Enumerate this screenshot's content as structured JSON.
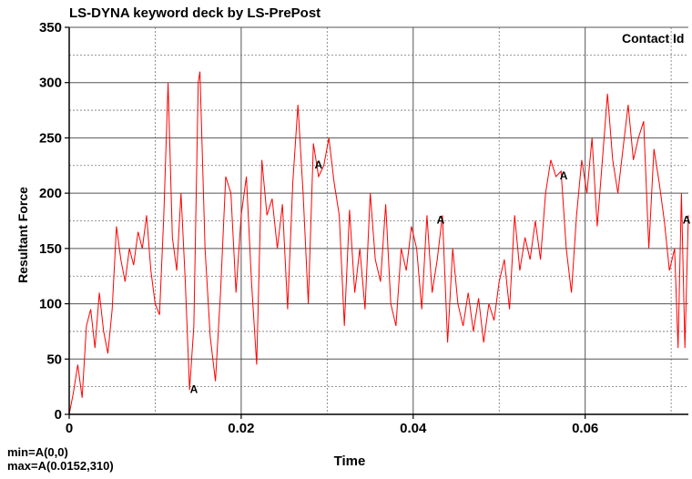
{
  "chart_data": {
    "type": "line",
    "title": "LS-DYNA keyword deck by LS-PrePost",
    "xlabel": "Time",
    "ylabel": "Resultant Force",
    "xlim": [
      0,
      0.072
    ],
    "ylim": [
      0,
      350
    ],
    "xticks": [
      0,
      0.02,
      0.04,
      0.06
    ],
    "xtick_labels": [
      "0",
      "0.02",
      "0.04",
      "0.06"
    ],
    "yticks": [
      0,
      50,
      100,
      150,
      200,
      250,
      300,
      350
    ],
    "ytick_labels": [
      "0",
      "50",
      "100",
      "150",
      "200",
      "250",
      "300",
      "350"
    ],
    "grid": true,
    "legend_position": "top-right",
    "series": [
      {
        "name": "Contact Id",
        "marker": "A",
        "color": "#ff0000",
        "x": [
          0,
          0.0005,
          0.001,
          0.0015,
          0.002,
          0.0025,
          0.003,
          0.0035,
          0.004,
          0.0045,
          0.005,
          0.0055,
          0.006,
          0.0065,
          0.007,
          0.0075,
          0.008,
          0.0085,
          0.009,
          0.0095,
          0.01,
          0.0105,
          0.011,
          0.0115,
          0.012,
          0.0125,
          0.013,
          0.0135,
          0.014,
          0.0145,
          0.015,
          0.0152,
          0.0158,
          0.0164,
          0.017,
          0.0176,
          0.0182,
          0.0188,
          0.0194,
          0.02,
          0.0206,
          0.0212,
          0.0218,
          0.0224,
          0.023,
          0.0236,
          0.0242,
          0.0248,
          0.0254,
          0.026,
          0.0266,
          0.0272,
          0.0278,
          0.0284,
          0.029,
          0.0296,
          0.0302,
          0.0308,
          0.0314,
          0.032,
          0.0326,
          0.0332,
          0.0338,
          0.0344,
          0.035,
          0.0356,
          0.0362,
          0.0368,
          0.0374,
          0.038,
          0.0386,
          0.0392,
          0.0398,
          0.0404,
          0.041,
          0.0416,
          0.0422,
          0.0428,
          0.0434,
          0.044,
          0.0446,
          0.0452,
          0.0458,
          0.0464,
          0.047,
          0.0476,
          0.0482,
          0.0488,
          0.0494,
          0.05,
          0.0506,
          0.0512,
          0.0518,
          0.0524,
          0.053,
          0.0536,
          0.0542,
          0.0548,
          0.0554,
          0.056,
          0.0566,
          0.0572,
          0.0578,
          0.0584,
          0.059,
          0.0596,
          0.0602,
          0.0608,
          0.0614,
          0.062,
          0.0626,
          0.0632,
          0.0638,
          0.0644,
          0.065,
          0.0656,
          0.0662,
          0.0668,
          0.0674,
          0.068,
          0.0686,
          0.0692,
          0.0698,
          0.0704,
          0.0708,
          0.0712,
          0.0716,
          0.072
        ],
        "y": [
          0,
          20,
          45,
          15,
          80,
          95,
          60,
          110,
          75,
          55,
          95,
          170,
          140,
          120,
          150,
          135,
          165,
          150,
          180,
          130,
          100,
          90,
          180,
          300,
          160,
          130,
          200,
          120,
          22,
          80,
          300,
          310,
          150,
          70,
          30,
          110,
          215,
          200,
          110,
          180,
          215,
          120,
          45,
          230,
          180,
          195,
          150,
          190,
          95,
          210,
          280,
          200,
          100,
          245,
          215,
          225,
          250,
          210,
          180,
          80,
          185,
          110,
          150,
          95,
          200,
          140,
          120,
          190,
          100,
          80,
          150,
          130,
          170,
          150,
          95,
          180,
          110,
          140,
          180,
          65,
          150,
          100,
          80,
          110,
          75,
          105,
          65,
          100,
          85,
          120,
          140,
          95,
          180,
          130,
          160,
          140,
          175,
          140,
          200,
          230,
          215,
          220,
          150,
          110,
          180,
          230,
          200,
          250,
          170,
          230,
          290,
          230,
          200,
          240,
          280,
          230,
          250,
          265,
          150,
          240,
          210,
          175,
          130,
          150,
          60,
          200,
          60,
          180
        ]
      }
    ],
    "markers": [
      {
        "label": "A",
        "x": 0.0145,
        "y": 22
      },
      {
        "label": "A",
        "x": 0.029,
        "y": 225
      },
      {
        "label": "A",
        "x": 0.0432,
        "y": 175
      },
      {
        "label": "A",
        "x": 0.0575,
        "y": 215
      },
      {
        "label": "A",
        "x": 0.0718,
        "y": 175
      }
    ],
    "min_text": "min=A(0,0)",
    "max_text": "max=A(0.0152,310)"
  }
}
